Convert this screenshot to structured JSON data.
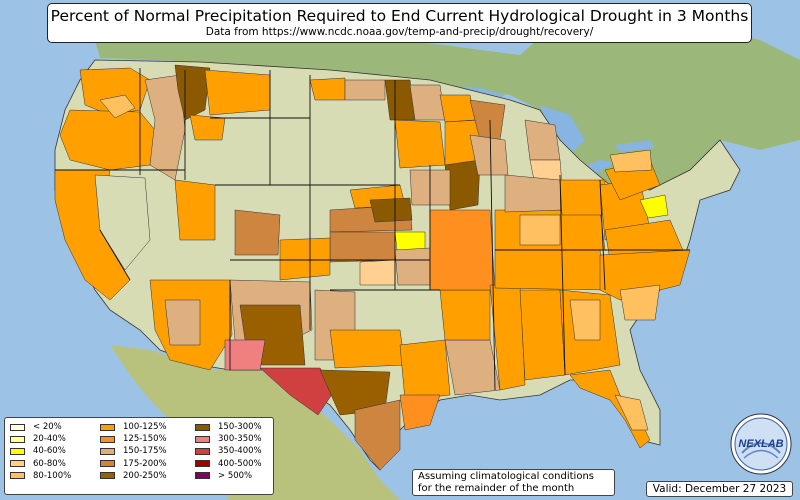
{
  "header": {
    "title": "Percent of Normal Precipitation Required to End Current Hydrological Drought in 3 Months",
    "subtitle": "Data from https://www.ncdc.noaa.gov/temp-and-precip/drought/recovery/"
  },
  "legend": {
    "items": [
      {
        "label": "< 20%",
        "color": "#ffffe0"
      },
      {
        "label": "20-40%",
        "color": "#ffffa8"
      },
      {
        "label": "40-60%",
        "color": "#ffff00"
      },
      {
        "label": "60-80%",
        "color": "#ffd090"
      },
      {
        "label": "80-100%",
        "color": "#ffc060"
      },
      {
        "label": "100-125%",
        "color": "#ff9f00"
      },
      {
        "label": "125-150%",
        "color": "#ff9020"
      },
      {
        "label": "150-175%",
        "color": "#deb080"
      },
      {
        "label": "175-200%",
        "color": "#cd853f"
      },
      {
        "label": "200-250%",
        "color": "#9a6000"
      },
      {
        "label": "150-300%",
        "color": "#8b5a00"
      },
      {
        "label": "300-350%",
        "color": "#f08080"
      },
      {
        "label": "350-400%",
        "color": "#d04040"
      },
      {
        "label": "400-500%",
        "color": "#a00000"
      },
      {
        "label": "> 500%",
        "color": "#800060"
      }
    ]
  },
  "note": {
    "line1": "Assuming climatological conditions",
    "line2": "for the remainder of the month"
  },
  "valid_text": "Valid: December 27 2023",
  "logo": {
    "text": "NEXLAB"
  }
}
